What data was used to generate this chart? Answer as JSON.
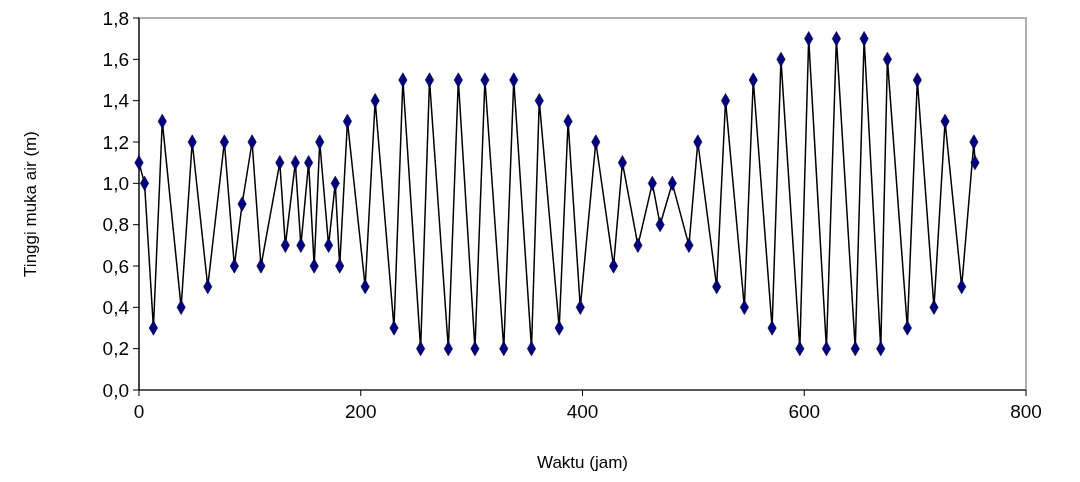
{
  "chart_data": {
    "type": "line",
    "xlabel": "Waktu (jam)",
    "ylabel": "Tinggi muka air (m)",
    "xlim": [
      0,
      800
    ],
    "xticks": [
      0,
      200,
      400,
      600,
      800
    ],
    "ylim": [
      0,
      1.8
    ],
    "yticks": [
      {
        "value": 0,
        "label": "0,0"
      },
      {
        "value": 0.2,
        "label": "0,2"
      },
      {
        "value": 0.4,
        "label": "0,4"
      },
      {
        "value": 0.6,
        "label": "0,6"
      },
      {
        "value": 0.8,
        "label": "0,8"
      },
      {
        "value": 1,
        "label": "1,0"
      },
      {
        "value": 1.2,
        "label": "1,2"
      },
      {
        "value": 1.4,
        "label": "1,4"
      },
      {
        "value": 1.6,
        "label": "1,6"
      },
      {
        "value": 1.8,
        "label": "1,8"
      }
    ],
    "grid": false,
    "marker": "diamond",
    "line_style": "solid",
    "x": [
      0,
      5,
      13,
      21,
      38,
      48,
      62,
      77,
      86,
      93,
      102,
      110,
      127,
      132,
      141,
      146,
      153,
      158,
      163,
      171,
      177,
      181,
      188,
      204,
      213,
      230,
      238,
      254,
      262,
      279,
      288,
      303,
      312,
      329,
      338,
      354,
      361,
      379,
      387,
      398,
      412,
      428,
      436,
      450,
      463,
      470,
      481,
      496,
      504,
      521,
      529,
      546,
      554,
      571,
      579,
      596,
      604,
      620,
      629,
      646,
      654,
      669,
      675,
      693,
      702,
      717,
      727,
      742,
      753,
      754
    ],
    "series": [
      {
        "color": "#000080",
        "values": [
          1.1,
          1.0,
          0.3,
          1.3,
          0.4,
          1.2,
          0.5,
          1.2,
          0.6,
          0.9,
          1.2,
          0.6,
          1.1,
          0.7,
          1.1,
          0.7,
          1.1,
          0.6,
          1.2,
          0.7,
          1.0,
          0.6,
          1.3,
          0.5,
          1.4,
          0.3,
          1.5,
          0.2,
          1.5,
          0.2,
          1.5,
          0.2,
          1.5,
          0.2,
          1.5,
          0.2,
          1.4,
          0.3,
          1.3,
          0.4,
          1.2,
          0.6,
          1.1,
          0.7,
          1.0,
          0.8,
          1.0,
          0.7,
          1.2,
          0.5,
          1.4,
          0.4,
          1.5,
          0.3,
          1.6,
          0.2,
          1.7,
          0.2,
          1.7,
          0.2,
          1.7,
          0.2,
          1.6,
          0.3,
          1.5,
          0.4,
          1.3,
          0.5,
          1.2,
          1.1
        ]
      }
    ]
  }
}
